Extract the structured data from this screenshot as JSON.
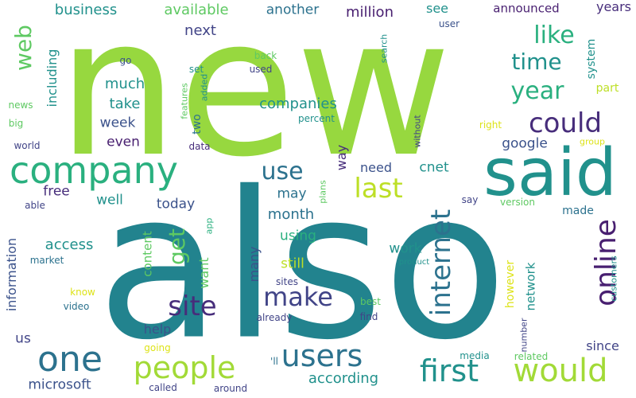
{
  "colors": {
    "lime": "#97d83f",
    "green_light": "#a2da37",
    "green": "#5ec962",
    "teal_green": "#2ab07f",
    "teal": "#21918c",
    "teal_dark": "#22838e",
    "blue_teal": "#2c728e",
    "blue": "#3b528b",
    "blue_dark": "#414487",
    "purple": "#472d7b",
    "indigo": "#481f70",
    "yellow": "#dde318",
    "yellow_light": "#bddf26"
  },
  "words": [
    {
      "text": "new",
      "weight": 100,
      "color": "lime",
      "orientation": "horizontal"
    },
    {
      "text": "also",
      "weight": 98,
      "color": "teal_dark",
      "orientation": "horizontal"
    },
    {
      "text": "said",
      "weight": 52,
      "color": "teal",
      "orientation": "horizontal"
    },
    {
      "text": "company",
      "weight": 36,
      "color": "teal_green",
      "orientation": "horizontal"
    },
    {
      "text": "one",
      "weight": 32,
      "color": "blue_teal",
      "orientation": "horizontal"
    },
    {
      "text": "would",
      "weight": 30,
      "color": "green_light",
      "orientation": "horizontal"
    },
    {
      "text": "first",
      "weight": 28,
      "color": "teal",
      "orientation": "horizontal"
    },
    {
      "text": "users",
      "weight": 28,
      "color": "blue_teal",
      "orientation": "horizontal"
    },
    {
      "text": "people",
      "weight": 27,
      "color": "green_light",
      "orientation": "horizontal"
    },
    {
      "text": "online",
      "weight": 26,
      "color": "indigo",
      "orientation": "vertical"
    },
    {
      "text": "internet",
      "weight": 25,
      "color": "blue_teal",
      "orientation": "vertical"
    },
    {
      "text": "could",
      "weight": 25,
      "color": "purple",
      "orientation": "horizontal"
    },
    {
      "text": "site",
      "weight": 24,
      "color": "purple",
      "orientation": "horizontal"
    },
    {
      "text": "last",
      "weight": 24,
      "color": "yellow_light",
      "orientation": "horizontal"
    },
    {
      "text": "make",
      "weight": 23,
      "color": "blue_dark",
      "orientation": "horizontal"
    },
    {
      "text": "use",
      "weight": 22,
      "color": "blue_teal",
      "orientation": "horizontal"
    },
    {
      "text": "year",
      "weight": 22,
      "color": "teal_green",
      "orientation": "horizontal"
    },
    {
      "text": "like",
      "weight": 22,
      "color": "teal_green",
      "orientation": "horizontal"
    },
    {
      "text": "time",
      "weight": 20,
      "color": "teal",
      "orientation": "horizontal"
    },
    {
      "text": "get",
      "weight": 20,
      "color": "green",
      "orientation": "vertical"
    },
    {
      "text": "web",
      "weight": 19,
      "color": "green",
      "orientation": "vertical"
    },
    {
      "text": "month",
      "weight": 12,
      "color": "blue_teal",
      "orientation": "horizontal"
    },
    {
      "text": "million",
      "weight": 12,
      "color": "indigo",
      "orientation": "horizontal"
    },
    {
      "text": "business",
      "weight": 12,
      "color": "teal",
      "orientation": "horizontal"
    },
    {
      "text": "available",
      "weight": 12,
      "color": "green",
      "orientation": "horizontal"
    },
    {
      "text": "another",
      "weight": 11,
      "color": "blue_teal",
      "orientation": "horizontal"
    },
    {
      "text": "see",
      "weight": 11,
      "color": "teal",
      "orientation": "horizontal"
    },
    {
      "text": "years",
      "weight": 11,
      "color": "purple",
      "orientation": "horizontal"
    },
    {
      "text": "announced",
      "weight": 10,
      "color": "indigo",
      "orientation": "horizontal"
    },
    {
      "text": "next",
      "weight": 12,
      "color": "blue_dark",
      "orientation": "horizontal"
    },
    {
      "text": "much",
      "weight": 12,
      "color": "teal",
      "orientation": "horizontal"
    },
    {
      "text": "take",
      "weight": 12,
      "color": "teal",
      "orientation": "horizontal"
    },
    {
      "text": "week",
      "weight": 11,
      "color": "blue",
      "orientation": "horizontal"
    },
    {
      "text": "even",
      "weight": 11,
      "color": "indigo",
      "orientation": "horizontal"
    },
    {
      "text": "companies",
      "weight": 12,
      "color": "teal",
      "orientation": "horizontal"
    },
    {
      "text": "google",
      "weight": 11,
      "color": "blue",
      "orientation": "horizontal"
    },
    {
      "text": "need",
      "weight": 10,
      "color": "blue",
      "orientation": "horizontal"
    },
    {
      "text": "cnet",
      "weight": 11,
      "color": "teal",
      "orientation": "horizontal"
    },
    {
      "text": "free",
      "weight": 11,
      "color": "purple",
      "orientation": "horizontal"
    },
    {
      "text": "well",
      "weight": 11,
      "color": "teal",
      "orientation": "horizontal"
    },
    {
      "text": "today",
      "weight": 11,
      "color": "blue",
      "orientation": "horizontal"
    },
    {
      "text": "may",
      "weight": 11,
      "color": "blue_teal",
      "orientation": "horizontal"
    },
    {
      "text": "using",
      "weight": 11,
      "color": "teal_green",
      "orientation": "horizontal"
    },
    {
      "text": "access",
      "weight": 12,
      "color": "teal",
      "orientation": "horizontal"
    },
    {
      "text": "work",
      "weight": 11,
      "color": "teal",
      "orientation": "horizontal"
    },
    {
      "text": "still",
      "weight": 11,
      "color": "yellow_light",
      "orientation": "horizontal"
    },
    {
      "text": "help",
      "weight": 10,
      "color": "blue",
      "orientation": "horizontal"
    },
    {
      "text": "since",
      "weight": 10,
      "color": "blue_dark",
      "orientation": "horizontal"
    },
    {
      "text": "according",
      "weight": 12,
      "color": "teal",
      "orientation": "horizontal"
    },
    {
      "text": "microsoft",
      "weight": 11,
      "color": "blue",
      "orientation": "horizontal"
    },
    {
      "text": "us",
      "weight": 11,
      "color": "blue_dark",
      "orientation": "horizontal"
    },
    {
      "text": "made",
      "weight": 9,
      "color": "blue_teal",
      "orientation": "horizontal"
    },
    {
      "text": "way",
      "weight": 11,
      "color": "purple",
      "orientation": "vertical"
    },
    {
      "text": "including",
      "weight": 11,
      "color": "teal",
      "orientation": "vertical"
    },
    {
      "text": "information",
      "weight": 11,
      "color": "blue",
      "orientation": "vertical"
    },
    {
      "text": "content",
      "weight": 10,
      "color": "green",
      "orientation": "vertical"
    },
    {
      "text": "want",
      "weight": 11,
      "color": "green",
      "orientation": "vertical"
    },
    {
      "text": "many",
      "weight": 11,
      "color": "blue",
      "orientation": "vertical"
    },
    {
      "text": "network",
      "weight": 10,
      "color": "teal",
      "orientation": "vertical"
    },
    {
      "text": "however",
      "weight": 9,
      "color": "yellow",
      "orientation": "vertical"
    },
    {
      "text": "system",
      "weight": 9,
      "color": "teal",
      "orientation": "vertical"
    },
    {
      "text": "two",
      "weight": 9,
      "color": "blue_teal",
      "orientation": "vertical"
    },
    {
      "text": "part",
      "weight": 9,
      "color": "yellow_light",
      "orientation": "horizontal"
    },
    {
      "text": "plans",
      "weight": 7,
      "color": "green",
      "orientation": "vertical"
    },
    {
      "text": "without",
      "weight": 7,
      "color": "blue_dark",
      "orientation": "vertical"
    },
    {
      "text": "search",
      "weight": 7,
      "color": "teal",
      "orientation": "vertical"
    },
    {
      "text": "app",
      "weight": 7,
      "color": "teal_green",
      "orientation": "vertical"
    },
    {
      "text": "features",
      "weight": 7,
      "color": "green",
      "orientation": "vertical"
    },
    {
      "text": "added",
      "weight": 7,
      "color": "teal",
      "orientation": "vertical"
    },
    {
      "text": "number",
      "weight": 7,
      "color": "blue_dark",
      "orientation": "vertical"
    },
    {
      "text": "customers",
      "weight": 7,
      "color": "teal",
      "orientation": "vertical"
    },
    {
      "text": "user",
      "weight": 7,
      "color": "blue",
      "orientation": "horizontal"
    },
    {
      "text": "go",
      "weight": 7,
      "color": "blue",
      "orientation": "horizontal"
    },
    {
      "text": "set",
      "weight": 7,
      "color": "teal",
      "orientation": "horizontal"
    },
    {
      "text": "back",
      "weight": 7,
      "color": "green",
      "orientation": "horizontal"
    },
    {
      "text": "used",
      "weight": 7,
      "color": "blue_dark",
      "orientation": "horizontal"
    },
    {
      "text": "news",
      "weight": 7,
      "color": "green",
      "orientation": "horizontal"
    },
    {
      "text": "big",
      "weight": 7,
      "color": "green",
      "orientation": "horizontal"
    },
    {
      "text": "world",
      "weight": 7,
      "color": "blue_dark",
      "orientation": "horizontal"
    },
    {
      "text": "data",
      "weight": 7,
      "color": "purple",
      "orientation": "horizontal"
    },
    {
      "text": "percent",
      "weight": 7,
      "color": "teal",
      "orientation": "horizontal"
    },
    {
      "text": "right",
      "weight": 7,
      "color": "yellow",
      "orientation": "horizontal"
    },
    {
      "text": "group",
      "weight": 6,
      "color": "yellow",
      "orientation": "horizontal"
    },
    {
      "text": "say",
      "weight": 7,
      "color": "blue_dark",
      "orientation": "horizontal"
    },
    {
      "text": "version",
      "weight": 7,
      "color": "green",
      "orientation": "horizontal"
    },
    {
      "text": "able",
      "weight": 7,
      "color": "blue_dark",
      "orientation": "horizontal"
    },
    {
      "text": "market",
      "weight": 7,
      "color": "blue_teal",
      "orientation": "horizontal"
    },
    {
      "text": "product",
      "weight": 6,
      "color": "teal",
      "orientation": "horizontal"
    },
    {
      "text": "know",
      "weight": 7,
      "color": "yellow",
      "orientation": "horizontal"
    },
    {
      "text": "video",
      "weight": 7,
      "color": "blue_teal",
      "orientation": "horizontal"
    },
    {
      "text": "sites",
      "weight": 7,
      "color": "blue_dark",
      "orientation": "horizontal"
    },
    {
      "text": "best",
      "weight": 7,
      "color": "green",
      "orientation": "horizontal"
    },
    {
      "text": "already",
      "weight": 7,
      "color": "blue_dark",
      "orientation": "horizontal"
    },
    {
      "text": "find",
      "weight": 7,
      "color": "blue_dark",
      "orientation": "horizontal"
    },
    {
      "text": "going",
      "weight": 7,
      "color": "yellow",
      "orientation": "horizontal"
    },
    {
      "text": "'ll",
      "weight": 7,
      "color": "blue_teal",
      "orientation": "horizontal"
    },
    {
      "text": "media",
      "weight": 7,
      "color": "teal",
      "orientation": "horizontal"
    },
    {
      "text": "related",
      "weight": 7,
      "color": "green",
      "orientation": "horizontal"
    },
    {
      "text": "called",
      "weight": 7,
      "color": "blue_dark",
      "orientation": "horizontal"
    },
    {
      "text": "around",
      "weight": 7,
      "color": "blue_dark",
      "orientation": "horizontal"
    }
  ]
}
